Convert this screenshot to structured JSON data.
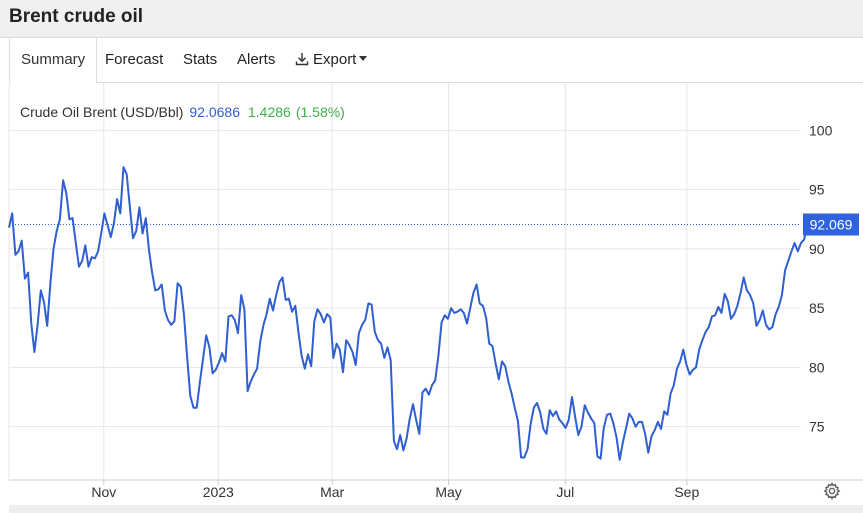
{
  "header": {
    "title": "Brent crude oil"
  },
  "tabs": [
    {
      "label": "Summary",
      "active": true
    },
    {
      "label": "Forecast",
      "active": false
    },
    {
      "label": "Stats",
      "active": false
    },
    {
      "label": "Alerts",
      "active": false
    },
    {
      "label": "Export",
      "active": false
    }
  ],
  "icons": {
    "export": "download-icon",
    "settings": "gear-icon"
  },
  "colors": {
    "series": "#2f5fd0",
    "change_positive": "#3fae49",
    "price_tag_bg": "#2f62e0"
  },
  "chart_data": {
    "type": "line",
    "legend": {
      "name": "Crude Oil Brent (USD/Bbl)",
      "value": "92.0686",
      "change": "1.4286",
      "change_pct": "(1.58%)"
    },
    "last_price_label": "92.069",
    "ylim": [
      70.5,
      104
    ],
    "yticks": [
      75,
      80,
      85,
      90,
      95,
      100
    ],
    "ytick_labels": [
      "75",
      "80",
      "85",
      "90",
      "95",
      "100"
    ],
    "xlim": [
      0,
      249
    ],
    "xtick_labels": [
      "Nov",
      "2023",
      "Mar",
      "May",
      "Jul",
      "Sep"
    ],
    "xtick_positions": [
      29.8,
      65.8,
      101.6,
      138.2,
      174.9,
      213.1
    ],
    "grid": true,
    "values": [
      91.8,
      93.0,
      89.5,
      89.8,
      90.7,
      87.5,
      88.0,
      83.7,
      81.3,
      83.6,
      86.5,
      85.5,
      83.5,
      87.0,
      90.0,
      91.5,
      92.5,
      95.8,
      94.7,
      92.5,
      92.6,
      90.5,
      88.5,
      89.0,
      90.3,
      88.5,
      89.3,
      89.2,
      89.8,
      91.3,
      93.0,
      92.0,
      91.0,
      92.2,
      94.2,
      93.0,
      96.9,
      96.3,
      93.5,
      90.9,
      91.5,
      93.5,
      91.3,
      92.6,
      89.9,
      88.0,
      86.5,
      86.6,
      87.0,
      84.8,
      84.0,
      83.6,
      83.9,
      87.1,
      86.8,
      84.5,
      80.9,
      77.6,
      76.6,
      76.6,
      78.7,
      80.7,
      82.7,
      81.7,
      79.5,
      79.8,
      80.4,
      81.2,
      80.5,
      84.3,
      84.4,
      84.0,
      82.9,
      86.1,
      84.9,
      78.0,
      78.8,
      79.4,
      79.9,
      82.2,
      83.6,
      84.5,
      85.8,
      84.8,
      86.1,
      87.2,
      87.6,
      85.7,
      85.8,
      84.7,
      85.2,
      83.0,
      81.0,
      79.9,
      81.1,
      80.1,
      83.9,
      84.9,
      84.5,
      83.8,
      84.5,
      84.2,
      80.8,
      82.0,
      81.5,
      79.6,
      82.3,
      81.9,
      81.3,
      80.2,
      82.9,
      83.6,
      84.0,
      85.4,
      85.3,
      83.0,
      82.3,
      82.0,
      80.8,
      81.7,
      80.6,
      73.8,
      73.1,
      74.3,
      73.0,
      74.0,
      75.7,
      76.9,
      75.6,
      74.4,
      77.9,
      78.2,
      77.7,
      78.5,
      78.9,
      81.0,
      83.8,
      84.4,
      84.1,
      85.0,
      84.6,
      84.7,
      84.9,
      84.6,
      83.7,
      85.0,
      86.3,
      87.0,
      85.4,
      85.2,
      84.2,
      82.0,
      81.8,
      80.3,
      79.0,
      80.5,
      80.1,
      78.8,
      77.8,
      76.6,
      75.5,
      72.4,
      72.4,
      73.1,
      75.2,
      76.6,
      77.0,
      76.2,
      74.8,
      74.4,
      76.4,
      75.9,
      76.3,
      75.6,
      75.3,
      74.9,
      75.6,
      77.5,
      75.8,
      74.3,
      75.0,
      76.8,
      76.2,
      75.7,
      75.3,
      72.5,
      72.3,
      74.9,
      76.0,
      76.1,
      75.3,
      74.1,
      72.2,
      73.7,
      74.9,
      76.1,
      75.7,
      75.0,
      75.4,
      75.4,
      74.4,
      72.8,
      74.2,
      74.7,
      75.4,
      74.8,
      76.3,
      76.0,
      77.8,
      78.5,
      79.9,
      80.5,
      81.5,
      80.2,
      79.4,
      79.8,
      80.0,
      81.5,
      82.3,
      83.0,
      83.4,
      84.3,
      84.4,
      85.1,
      84.6,
      86.2,
      85.6,
      84.1,
      84.5,
      85.2,
      86.3,
      87.6,
      86.5,
      86.1,
      85.4,
      83.5,
      84.0,
      84.8,
      83.6,
      83.2,
      83.4,
      84.5,
      85.1,
      86.1,
      88.2,
      89.0,
      89.8,
      90.5,
      89.8,
      90.5,
      90.8,
      92.06
    ]
  }
}
